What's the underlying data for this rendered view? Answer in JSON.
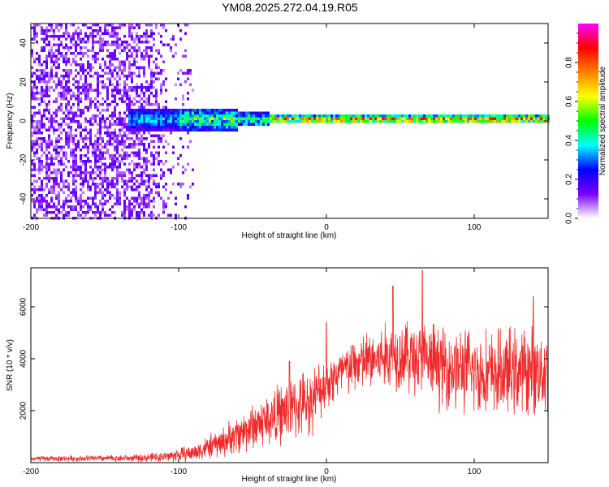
{
  "title": "YM08.2025.272.04.19.R05",
  "chart_data": [
    {
      "type": "heatmap",
      "name": "spectrogram",
      "xlabel": "Height of straight line (km)",
      "ylabel": "Frequency (Hz)",
      "xlim": [
        -200,
        150
      ],
      "ylim": [
        -50,
        50
      ],
      "xticks": [
        -200,
        -100,
        0,
        100
      ],
      "yticks": [
        -40,
        -20,
        0,
        20,
        40
      ],
      "colorbar": {
        "label": "Normalized spectral amplitude",
        "range": [
          0.0,
          1.0
        ],
        "ticks": [
          0.0,
          0.2,
          0.4,
          0.6,
          0.8
        ],
        "colormap": [
          "#ffffff",
          "#7a00ff",
          "#0000ff",
          "#00ffff",
          "#00ff00",
          "#ffff00",
          "#ff8000",
          "#ff0000",
          "#ff00ff"
        ]
      },
      "features": {
        "noise_region_x": [
          -200,
          -90
        ],
        "signal_line_freq_hz": 1.5,
        "signal_start_x": -135,
        "signal_end_x": 150
      }
    },
    {
      "type": "line",
      "name": "snr",
      "xlabel": "Height of straight line (km)",
      "ylabel": "SNR (10 * v/v)",
      "xlim": [
        -200,
        150
      ],
      "ylim": [
        0,
        7500
      ],
      "xticks": [
        -200,
        -100,
        0,
        100
      ],
      "yticks": [
        2000,
        4000,
        6000
      ],
      "color": "#ee2a2a",
      "envelope": [
        {
          "x": -200,
          "base": 150,
          "amp": 120
        },
        {
          "x": -130,
          "base": 170,
          "amp": 160
        },
        {
          "x": -110,
          "base": 220,
          "amp": 250
        },
        {
          "x": -90,
          "base": 380,
          "amp": 400
        },
        {
          "x": -70,
          "base": 800,
          "amp": 700
        },
        {
          "x": -50,
          "base": 1400,
          "amp": 1100
        },
        {
          "x": -30,
          "base": 1900,
          "amp": 1400
        },
        {
          "x": -10,
          "base": 2400,
          "amp": 1500
        },
        {
          "x": 0,
          "base": 3100,
          "amp": 1200
        },
        {
          "x": 20,
          "base": 3800,
          "amp": 1300
        },
        {
          "x": 50,
          "base": 4200,
          "amp": 1700
        },
        {
          "x": 80,
          "base": 3700,
          "amp": 1900
        },
        {
          "x": 110,
          "base": 3400,
          "amp": 2000
        },
        {
          "x": 150,
          "base": 3600,
          "amp": 2000
        }
      ],
      "peaks": [
        {
          "x": 65,
          "y": 7400
        },
        {
          "x": 45,
          "y": 6800
        },
        {
          "x": 0,
          "y": 5400
        },
        {
          "x": -25,
          "y": 3900
        },
        {
          "x": 140,
          "y": 6400
        }
      ]
    }
  ]
}
